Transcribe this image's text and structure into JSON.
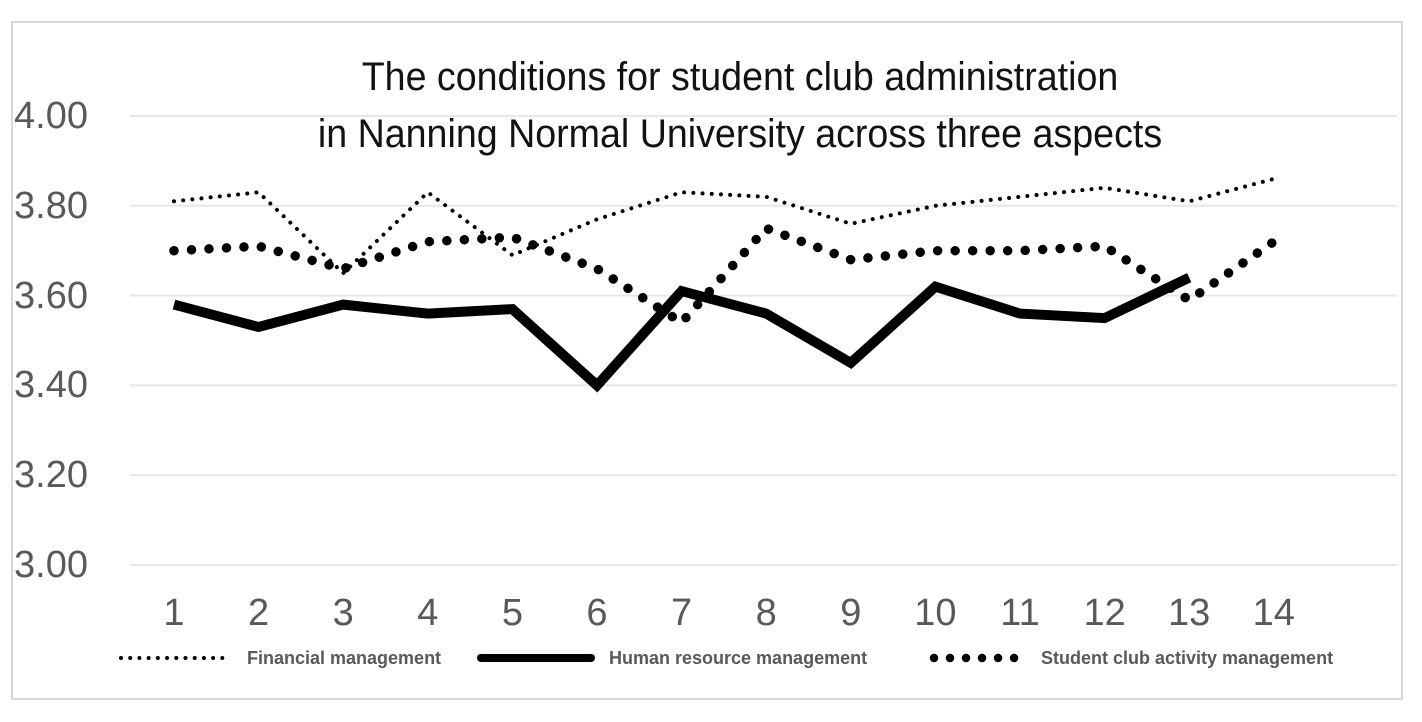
{
  "title": {
    "line1": "The conditions for student club administration",
    "line2": "in Nanning Normal University across three aspects"
  },
  "y_axis": {
    "ticks": [
      "4.00",
      "3.80",
      "3.60",
      "3.40",
      "3.20",
      "3.00"
    ]
  },
  "x_axis": {
    "ticks": [
      "1",
      "2",
      "3",
      "4",
      "5",
      "6",
      "7",
      "8",
      "9",
      "10",
      "11",
      "12",
      "13",
      "14"
    ]
  },
  "legend": {
    "items": [
      {
        "label": "Financial management",
        "style": "fine-dotted"
      },
      {
        "label": "Human resource management",
        "style": "solid"
      },
      {
        "label": "Student club activity management",
        "style": "bold-dotted"
      }
    ]
  },
  "colors": {
    "series_line": "#000000",
    "gridline": "#e7e7e7",
    "axis_text": "#595959",
    "legend_text": "#595959",
    "frame_border": "#d8d8d8",
    "background": "#ffffff",
    "title_text": "#121212"
  },
  "chart_data": {
    "type": "line",
    "title": "The conditions for student club administration in Nanning Normal University across three aspects",
    "x": [
      1,
      2,
      3,
      4,
      5,
      6,
      7,
      8,
      9,
      10,
      11,
      12,
      13,
      14
    ],
    "series": [
      {
        "name": "Financial management",
        "dash": "fine-dotted",
        "values": [
          3.81,
          3.83,
          3.65,
          3.83,
          3.69,
          3.77,
          3.83,
          3.82,
          3.76,
          3.8,
          3.82,
          3.84,
          3.81,
          3.86
        ]
      },
      {
        "name": "Human resource management",
        "dash": "solid",
        "values": [
          3.58,
          3.53,
          3.58,
          3.56,
          3.57,
          3.4,
          3.61,
          3.56,
          3.45,
          3.62,
          3.56,
          3.55,
          3.64
        ]
      },
      {
        "name": "Student club activity management",
        "dash": "bold-dotted",
        "values": [
          3.7,
          3.71,
          3.66,
          3.72,
          3.73,
          3.66,
          3.54,
          3.75,
          3.68,
          3.7,
          3.7,
          3.71,
          3.59,
          3.72
        ]
      }
    ],
    "ylim": [
      3.0,
      4.0
    ],
    "y_tick_step": 0.2,
    "grid": true,
    "legend_position": "bottom"
  }
}
